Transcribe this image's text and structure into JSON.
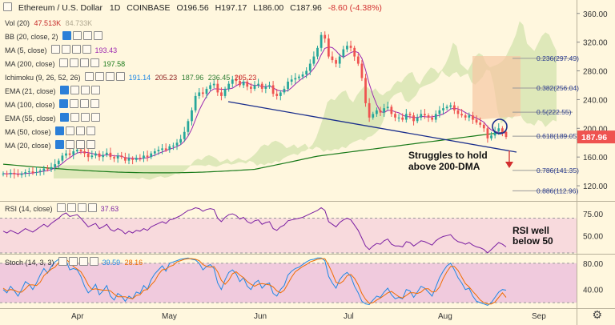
{
  "header": {
    "title": "Ethereum / U.S. Dollar",
    "interval": "1D",
    "exchange": "COINBASE",
    "open": "O196.56",
    "high": "H197.17",
    "low": "L186.00",
    "close": "C187.96",
    "change": "-8.60 (-4.38%)"
  },
  "legend": {
    "vol": {
      "label": "Vol (20)",
      "v1": "47.513K",
      "v2": "84.733K"
    },
    "bb": {
      "label": "BB (20, close, 2)"
    },
    "ma5": {
      "label": "MA (5, close)",
      "value": "193.43"
    },
    "ma200": {
      "label": "MA (200, close)",
      "value": "197.58"
    },
    "ichimoku": {
      "label": "Ichimoku (9, 26, 52, 26)",
      "v1": "191.14",
      "v2": "205.23",
      "v3": "187.96",
      "v4": "236.45",
      "v5": "205.23"
    },
    "ema21": {
      "label": "EMA (21, close)"
    },
    "ma100": {
      "label": "MA (100, close)"
    },
    "ema55": {
      "label": "EMA (55, close)"
    },
    "ma50": {
      "label": "MA (50, close)"
    },
    "ma20": {
      "label": "MA (20, close)"
    },
    "rsi": {
      "label": "RSI (14, close)",
      "value": "37.63"
    },
    "stoch": {
      "label": "Stoch (14, 3, 3)",
      "v1": "39.59",
      "v2": "28.16"
    }
  },
  "colors": {
    "background": "#fff7de",
    "up_candle": "#26a69a",
    "down_candle": "#ef5350",
    "ma5": "#9c27b0",
    "ma200": "#1b7b1b",
    "cloud_green": "#b5d48c",
    "cloud_red": "#f7c7a4",
    "trendline": "#1a2e8c",
    "rsi_band": "#f3c6dc",
    "stoch_band": "#e9b7dd",
    "last_price_tag": "#ef5350"
  },
  "annotations": {
    "main": "Struggles to hold above 200-DMA",
    "rsi": "RSI well below 50"
  },
  "chart_data": [
    {
      "type": "candlestick",
      "name": "price",
      "y_ticks": [
        120,
        160,
        200,
        240,
        280,
        320,
        360
      ],
      "ylim": [
        100,
        372
      ],
      "last_price": "187.96",
      "x_ticks": [
        "Apr",
        "May",
        "Jun",
        "Jul",
        "Aug",
        "Sep"
      ],
      "fib_levels": [
        {
          "label": "0.236(297.49)",
          "value": 297.49
        },
        {
          "label": "0.382(256.04)",
          "value": 256.04
        },
        {
          "label": "0.5(222.55)",
          "value": 222.55
        },
        {
          "label": "0.618(189.05)",
          "value": 189.05
        },
        {
          "label": "0.786(141.35)",
          "value": 141.35
        },
        {
          "label": "0.886(112.96)",
          "value": 112.96
        }
      ],
      "closes": [
        137,
        136,
        138,
        136,
        135,
        137,
        139,
        140,
        138,
        139,
        141,
        144,
        143,
        146,
        150,
        155,
        162,
        165,
        163,
        168,
        170,
        168,
        165,
        160,
        162,
        165,
        160,
        163,
        166,
        160,
        158,
        162,
        160,
        155,
        158,
        156,
        159,
        158,
        162,
        160,
        165,
        168,
        170,
        172,
        170,
        175,
        176,
        180,
        185,
        195,
        210,
        225,
        245,
        250,
        248,
        255,
        260,
        262,
        250,
        245,
        255,
        262,
        268,
        266,
        260,
        265,
        258,
        255,
        260,
        262,
        255,
        258,
        260,
        248,
        245,
        250,
        255,
        265,
        268,
        270,
        272,
        275,
        280,
        290,
        300,
        312,
        330,
        325,
        300,
        295,
        290,
        300,
        310,
        315,
        312,
        300,
        290,
        270,
        235,
        215,
        220,
        225,
        222,
        228,
        230,
        220,
        215,
        215,
        212,
        220,
        218,
        210,
        215,
        220,
        218,
        215,
        212,
        220,
        225,
        228,
        230,
        232,
        225,
        220,
        218,
        215,
        218,
        212,
        208,
        205,
        200,
        186,
        190,
        196,
        200,
        195,
        188
      ]
    },
    {
      "type": "line",
      "name": "rsi",
      "y_ticks": [
        50.0,
        75.0
      ],
      "ylim": [
        30,
        88
      ],
      "band": [
        30,
        70
      ],
      "values": [
        55,
        53,
        56,
        54,
        52,
        55,
        58,
        56,
        54,
        57,
        60,
        63,
        60,
        64,
        67,
        70,
        74,
        76,
        72,
        73,
        74,
        70,
        65,
        60,
        62,
        64,
        58,
        60,
        63,
        57,
        55,
        58,
        56,
        52,
        55,
        53,
        56,
        55,
        58,
        56,
        60,
        62,
        64,
        66,
        64,
        68,
        69,
        71,
        73,
        76,
        79,
        80,
        82,
        81,
        78,
        80,
        81,
        80,
        70,
        66,
        71,
        74,
        75,
        73,
        69,
        71,
        66,
        64,
        67,
        68,
        63,
        65,
        66,
        58,
        56,
        60,
        62,
        67,
        68,
        69,
        70,
        71,
        73,
        75,
        77,
        79,
        82,
        79,
        66,
        63,
        60,
        65,
        68,
        70,
        68,
        62,
        56,
        47,
        38,
        34,
        38,
        41,
        40,
        44,
        46,
        40,
        38,
        38,
        37,
        43,
        42,
        38,
        41,
        44,
        43,
        41,
        39,
        44,
        47,
        49,
        50,
        51,
        46,
        43,
        42,
        40,
        42,
        39,
        37,
        36,
        34,
        30,
        34,
        38,
        42,
        40,
        37
      ]
    },
    {
      "type": "line",
      "name": "stoch",
      "y_ticks": [
        40.0,
        80.0
      ],
      "ylim": [
        14,
        92
      ],
      "band": [
        20,
        80
      ],
      "k": [
        40,
        35,
        45,
        38,
        30,
        40,
        52,
        48,
        40,
        50,
        62,
        72,
        65,
        75,
        82,
        86,
        88,
        84,
        70,
        72,
        70,
        60,
        45,
        35,
        40,
        48,
        32,
        38,
        46,
        30,
        24,
        34,
        30,
        22,
        30,
        26,
        36,
        34,
        46,
        40,
        55,
        64,
        70,
        76,
        68,
        80,
        82,
        84,
        86,
        87,
        88,
        86,
        85,
        80,
        70,
        75,
        78,
        72,
        50,
        40,
        55,
        66,
        70,
        64,
        52,
        58,
        45,
        40,
        50,
        54,
        42,
        48,
        50,
        34,
        30,
        40,
        46,
        62,
        68,
        72,
        74,
        78,
        82,
        85,
        86,
        88,
        88,
        84,
        60,
        50,
        42,
        55,
        62,
        66,
        60,
        45,
        35,
        22,
        18,
        17,
        24,
        30,
        28,
        36,
        42,
        32,
        26,
        28,
        26,
        40,
        38,
        28,
        36,
        45,
        42,
        36,
        30,
        44,
        58,
        68,
        76,
        80,
        70,
        58,
        50,
        40,
        42,
        30,
        22,
        20,
        18,
        16,
        20,
        28,
        36,
        40,
        39
      ],
      "d": [
        42,
        38,
        40,
        39,
        36,
        36,
        41,
        47,
        47,
        46,
        51,
        61,
        66,
        71,
        74,
        81,
        85,
        86,
        81,
        75,
        71,
        67,
        58,
        47,
        40,
        41,
        40,
        39,
        39,
        38,
        33,
        29,
        29,
        29,
        27,
        26,
        31,
        32,
        39,
        40,
        47,
        53,
        63,
        70,
        71,
        75,
        77,
        82,
        84,
        86,
        87,
        87,
        86,
        84,
        78,
        75,
        74,
        75,
        67,
        54,
        48,
        54,
        64,
        67,
        62,
        58,
        52,
        48,
        45,
        48,
        49,
        48,
        47,
        44,
        38,
        35,
        39,
        49,
        59,
        67,
        71,
        75,
        78,
        82,
        84,
        86,
        87,
        87,
        77,
        65,
        51,
        49,
        53,
        61,
        63,
        57,
        47,
        34,
        25,
        19,
        20,
        24,
        27,
        31,
        35,
        37,
        33,
        29,
        27,
        31,
        35,
        35,
        34,
        36,
        41,
        41,
        36,
        37,
        44,
        57,
        67,
        75,
        75,
        69,
        59,
        49,
        44,
        37,
        31,
        24,
        20,
        18,
        18,
        21,
        28,
        35,
        28
      ]
    }
  ]
}
